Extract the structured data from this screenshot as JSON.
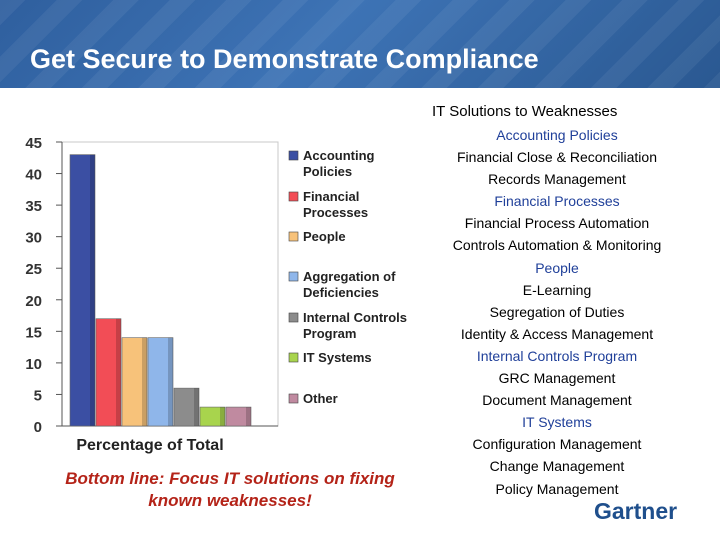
{
  "slide": {
    "title": "Get Secure to Demonstrate Compliance",
    "bottom_line": "Bottom line: Focus IT solutions on fixing known weaknesses!",
    "logo_text": "Gartner"
  },
  "solutions": {
    "heading": "IT Solutions to Weaknesses",
    "groups": [
      {
        "category": "Accounting Policies",
        "items": [
          "Financial Close & Reconciliation",
          "Records Management"
        ]
      },
      {
        "category": "Financial Processes",
        "items": [
          "Financial Process Automation",
          "Controls Automation & Monitoring"
        ]
      },
      {
        "category": "People",
        "items": [
          "E-Learning",
          "Segregation of Duties",
          "Identity & Access Management"
        ]
      },
      {
        "category": "Internal Controls Program",
        "items": [
          "GRC Management",
          "Document Management"
        ]
      },
      {
        "category": "IT Systems",
        "items": [
          "Configuration Management",
          "Change Management",
          "Policy Management"
        ]
      }
    ]
  },
  "chart_data": {
    "type": "bar",
    "xlabel": "Percentage of Total",
    "ylabel": "",
    "ylim": [
      0,
      45
    ],
    "yticks": [
      "0",
      "5",
      "10",
      "15",
      "20",
      "25",
      "30",
      "35",
      "40",
      "45"
    ],
    "series": [
      {
        "name": "Accounting Policies",
        "value": 43,
        "color": "#3b4fa3"
      },
      {
        "name": "Financial Processes",
        "value": 17,
        "color": "#f24d56"
      },
      {
        "name": "People",
        "value": 14,
        "color": "#f7c27a"
      },
      {
        "name": "Aggregation of Deficiencies",
        "value": 14,
        "color": "#8fb6ea"
      },
      {
        "name": "Internal Controls Program",
        "value": 6,
        "color": "#8c8c8c"
      },
      {
        "name": "IT Systems",
        "value": 3,
        "color": "#a8d44d"
      },
      {
        "name": "Other",
        "value": 3,
        "color": "#c08aa0"
      }
    ],
    "legend": [
      "Accounting Policies",
      "Financial Processes",
      "People",
      "Aggregation of Deficiencies",
      "Internal Controls Program",
      "IT Systems",
      "Other"
    ]
  }
}
